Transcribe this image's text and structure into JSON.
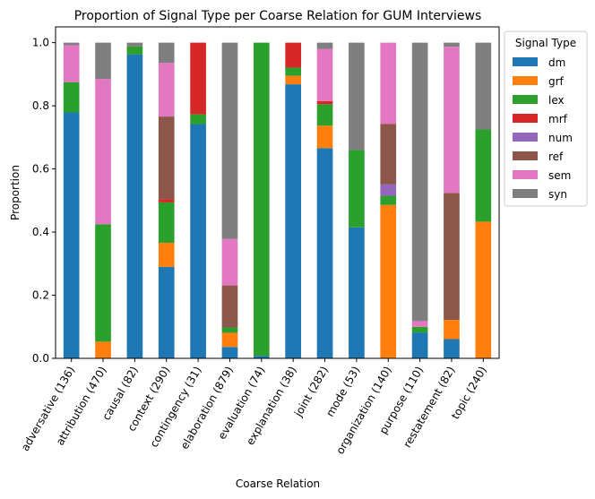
{
  "chart_data": {
    "type": "bar",
    "stacked": true,
    "title": "Proportion of Signal Type per Coarse Relation for GUM Interviews",
    "xlabel": "Coarse Relation",
    "ylabel": "Proportion",
    "ylim": [
      0,
      1.05
    ],
    "yticks": [
      "0.0",
      "0.2",
      "0.4",
      "0.6",
      "0.8",
      "1.0"
    ],
    "grid": false,
    "legend_title": "Signal Type",
    "legend_position": "outside-right-top",
    "categories": [
      "adversative (136)",
      "attribution (470)",
      "causal (82)",
      "context (290)",
      "contingency (31)",
      "elaboration (879)",
      "evaluation (74)",
      "explanation (38)",
      "joint (282)",
      "mode (53)",
      "organization (140)",
      "purpose (110)",
      "restatement (82)",
      "topic (240)"
    ],
    "series": [
      {
        "name": "dm",
        "color": "#1f77b4",
        "values": [
          0.779,
          0.0,
          0.963,
          0.29,
          0.742,
          0.036,
          0.008,
          0.868,
          0.666,
          0.415,
          0.0,
          0.082,
          0.061,
          0.0
        ]
      },
      {
        "name": "grf",
        "color": "#ff7f0e",
        "values": [
          0.0,
          0.053,
          0.0,
          0.076,
          0.0,
          0.045,
          0.0,
          0.027,
          0.071,
          0.0,
          0.486,
          0.0,
          0.061,
          0.433
        ]
      },
      {
        "name": "lex",
        "color": "#2ca02c",
        "values": [
          0.096,
          0.372,
          0.025,
          0.128,
          0.031,
          0.017,
          0.992,
          0.026,
          0.068,
          0.245,
          0.029,
          0.018,
          0.0,
          0.292
        ]
      },
      {
        "name": "mrf",
        "color": "#d62728",
        "values": [
          0.0,
          0.0,
          0.0,
          0.01,
          0.227,
          0.0,
          0.0,
          0.079,
          0.01,
          0.0,
          0.0,
          0.0,
          0.0,
          0.0
        ]
      },
      {
        "name": "num",
        "color": "#9467bd",
        "values": [
          0.0,
          0.0,
          0.0,
          0.0,
          0.0,
          0.0,
          0.0,
          0.0,
          0.0,
          0.0,
          0.036,
          0.0,
          0.0,
          0.0
        ]
      },
      {
        "name": "ref",
        "color": "#8c564b",
        "values": [
          0.0,
          0.0,
          0.0,
          0.262,
          0.0,
          0.133,
          0.0,
          0.0,
          0.0,
          0.0,
          0.192,
          0.0,
          0.402,
          0.0
        ]
      },
      {
        "name": "sem",
        "color": "#e377c2",
        "values": [
          0.117,
          0.46,
          0.0,
          0.17,
          0.0,
          0.147,
          0.0,
          0.0,
          0.165,
          0.0,
          0.257,
          0.018,
          0.463,
          0.0
        ]
      },
      {
        "name": "syn",
        "color": "#7f7f7f",
        "values": [
          0.008,
          0.115,
          0.012,
          0.064,
          0.0,
          0.622,
          0.0,
          0.0,
          0.02,
          0.34,
          0.0,
          0.882,
          0.013,
          0.275
        ]
      }
    ]
  }
}
